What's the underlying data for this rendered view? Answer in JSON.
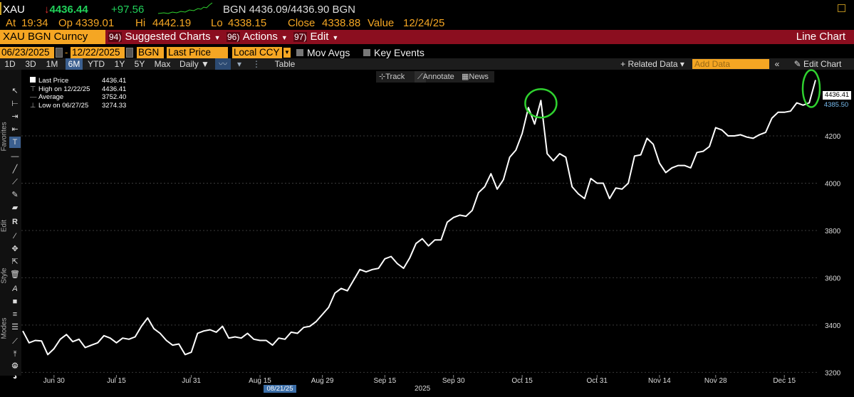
{
  "quote": {
    "ticker": "XAU",
    "arrow": "↓",
    "last": "4436.44",
    "change": "+97.56",
    "bid_ask": "BGN 4436.09/4436.90 BGN",
    "at_label": "At",
    "at_value": "19:34",
    "open_label": "Op",
    "open_value": "4339.01",
    "high_label": "Hi",
    "high_value": "4442.19",
    "low_label": "Lo",
    "low_value": "4338.15",
    "close_label": "Close",
    "close_value": "4338.88",
    "value_label": "Value",
    "value_value": "12/24/25"
  },
  "titlebar": {
    "security": "XAU BGN Curncy",
    "menus": [
      {
        "num": "94)",
        "label": "Suggested Charts"
      },
      {
        "num": "96)",
        "label": "Actions"
      },
      {
        "num": "97)",
        "label": "Edit"
      }
    ],
    "chart_kind": "Line Chart"
  },
  "settings": {
    "start_date": "06/23/2025",
    "end_date": "12/22/2025",
    "source": "BGN",
    "field": "Last Price",
    "currency": "Local CCY",
    "mov_avgs": "Mov Avgs",
    "key_events": "Key Events"
  },
  "toolbar": {
    "periods": [
      "1D",
      "3D",
      "1M",
      "6M",
      "YTD",
      "1Y",
      "5Y",
      "Max"
    ],
    "active_period": "6M",
    "frequency": "Daily ▼",
    "table": "Table",
    "related_data": "+ Related Data ▾",
    "add_data_placeholder": "Add Data",
    "edit_chart": "Edit Chart"
  },
  "rail": {
    "favorites": "Favorites",
    "edit": "Edit",
    "style": "Style",
    "modes": "Modes"
  },
  "mini_toolbar": {
    "track": "Track",
    "annotate": "Annotate",
    "news": "News"
  },
  "legend": {
    "rows": [
      {
        "label": "Last Price",
        "value": "4436.41"
      },
      {
        "label": "High on 12/22/25",
        "value": "4436.41"
      },
      {
        "label": "Average",
        "value": "3752.40"
      },
      {
        "label": "Low on 06/27/25",
        "value": "3274.33"
      }
    ]
  },
  "price_tag": "4436.41",
  "price_tag2": "4385.50",
  "date_marker": "08/21/25",
  "year_label": "2025",
  "colors": {
    "line": "#ffffff",
    "highlight": "#2fd12f",
    "accent": "#f5a623",
    "titlebar": "#8b0e1f"
  },
  "chart_data": {
    "type": "line",
    "series": [
      {
        "name": "Last Price"
      }
    ],
    "ylim": [
      3180,
      4480
    ],
    "yticks": [
      3200,
      3400,
      3600,
      3800,
      4000,
      4200
    ],
    "x_ticks": [
      "Jun 30",
      "Jul 15",
      "Jul 31",
      "Aug 15",
      "Aug 29",
      "Sep 15",
      "Sep 30",
      "Oct 15",
      "Oct 31",
      "Nov 14",
      "Nov 28",
      "Dec 15"
    ],
    "x": [
      "06/23",
      "06/24",
      "06/25",
      "06/26",
      "06/27",
      "06/30",
      "07/01",
      "07/02",
      "07/03",
      "07/07",
      "07/08",
      "07/09",
      "07/10",
      "07/11",
      "07/14",
      "07/15",
      "07/16",
      "07/17",
      "07/18",
      "07/21",
      "07/22",
      "07/23",
      "07/24",
      "07/25",
      "07/28",
      "07/29",
      "07/30",
      "07/31",
      "08/01",
      "08/04",
      "08/05",
      "08/06",
      "08/07",
      "08/08",
      "08/11",
      "08/12",
      "08/13",
      "08/14",
      "08/15",
      "08/18",
      "08/19",
      "08/20",
      "08/21",
      "08/22",
      "08/25",
      "08/26",
      "08/27",
      "08/28",
      "08/29",
      "09/02",
      "09/03",
      "09/04",
      "09/05",
      "09/08",
      "09/09",
      "09/10",
      "09/11",
      "09/12",
      "09/15",
      "09/16",
      "09/17",
      "09/18",
      "09/19",
      "09/22",
      "09/23",
      "09/24",
      "09/25",
      "09/26",
      "09/29",
      "09/30",
      "10/01",
      "10/02",
      "10/03",
      "10/06",
      "10/07",
      "10/08",
      "10/09",
      "10/10",
      "10/13",
      "10/14",
      "10/15",
      "10/16",
      "10/17",
      "10/20",
      "10/21",
      "10/22",
      "10/23",
      "10/24",
      "10/27",
      "10/28",
      "10/29",
      "10/30",
      "10/31",
      "11/03",
      "11/04",
      "11/05",
      "11/06",
      "11/07",
      "11/10",
      "11/11",
      "11/12",
      "11/13",
      "11/14",
      "11/17",
      "11/18",
      "11/19",
      "11/20",
      "11/21",
      "11/24",
      "11/25",
      "11/26",
      "11/28",
      "12/01",
      "12/02",
      "12/03",
      "12/04",
      "12/05",
      "12/08",
      "12/09",
      "12/10",
      "12/11",
      "12/12",
      "12/15",
      "12/16",
      "12/17",
      "12/18",
      "12/19",
      "12/22"
    ],
    "values": [
      3375,
      3325,
      3335,
      3333,
      3275,
      3300,
      3340,
      3360,
      3330,
      3340,
      3305,
      3315,
      3325,
      3355,
      3345,
      3325,
      3345,
      3340,
      3350,
      3395,
      3430,
      3385,
      3365,
      3335,
      3315,
      3320,
      3275,
      3285,
      3365,
      3375,
      3380,
      3370,
      3395,
      3345,
      3350,
      3345,
      3365,
      3340,
      3335,
      3335,
      3315,
      3345,
      3340,
      3370,
      3365,
      3390,
      3395,
      3415,
      3445,
      3475,
      3535,
      3555,
      3545,
      3590,
      3635,
      3625,
      3635,
      3640,
      3680,
      3690,
      3660,
      3640,
      3685,
      3745,
      3765,
      3735,
      3760,
      3760,
      3835,
      3855,
      3865,
      3860,
      3885,
      3960,
      3985,
      4040,
      3975,
      4015,
      4110,
      4140,
      4210,
      4320,
      4250,
      4350,
      4125,
      4095,
      4125,
      4110,
      3985,
      3955,
      3935,
      4020,
      4000,
      4000,
      3935,
      3980,
      3975,
      4000,
      4115,
      4120,
      4190,
      4165,
      4085,
      4045,
      4065,
      4075,
      4075,
      4065,
      4130,
      4135,
      4155,
      4235,
      4225,
      4200,
      4200,
      4205,
      4195,
      4190,
      4205,
      4215,
      4275,
      4300,
      4300,
      4305,
      4340,
      4330,
      4340,
      4436.41
    ]
  }
}
